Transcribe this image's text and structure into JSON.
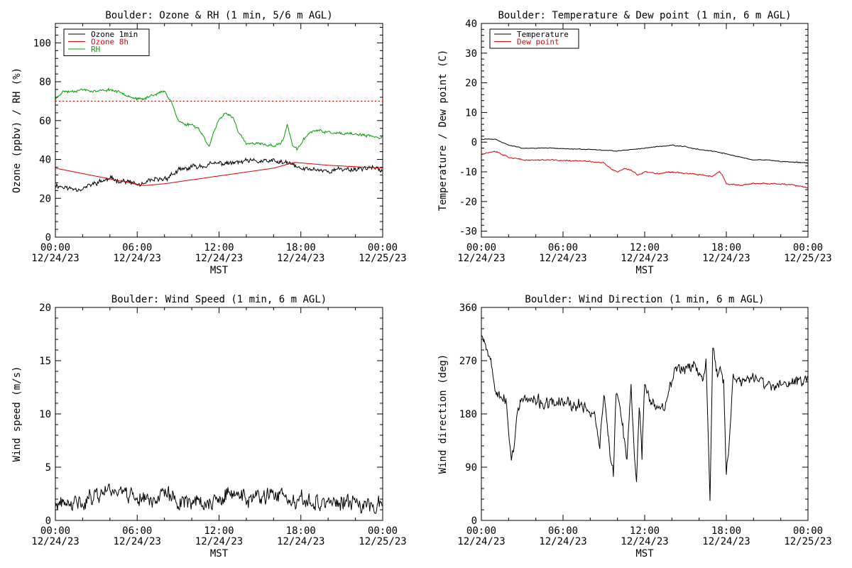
{
  "chart_data": [
    {
      "id": "ozone_rh",
      "type": "line",
      "title": "Boulder: Ozone & RH (1 min, 5/6 m AGL)",
      "xlabel": "MST",
      "ylabel": "Ozone (ppbv) / RH (%)",
      "xlim": [
        0,
        24
      ],
      "ylim": [
        0,
        110
      ],
      "yticks": [
        0,
        20,
        40,
        60,
        80,
        100
      ],
      "xtick_labels": [
        [
          "00:00",
          "12/24/23"
        ],
        [
          "06:00",
          "12/24/23"
        ],
        [
          "12:00",
          "12/24/23"
        ],
        [
          "18:00",
          "12/24/23"
        ],
        [
          "00:00",
          "12/25/23"
        ]
      ],
      "legend_position": "top-left",
      "reference_line": {
        "y": 70,
        "color": "#e00000",
        "style": "dotted"
      },
      "series": [
        {
          "name": "Ozone 1min",
          "color": "#000000",
          "noise": 1.5,
          "seed": 11,
          "x": [
            0,
            1,
            2,
            3,
            4,
            5,
            6,
            6.5,
            7,
            8,
            9,
            10,
            11,
            12,
            13,
            14,
            15,
            16,
            17,
            17.5,
            18,
            19,
            20,
            21,
            22,
            23,
            24
          ],
          "y": [
            27,
            25,
            25,
            28,
            30,
            29,
            27,
            27,
            29,
            30,
            34,
            36,
            37,
            38,
            38,
            39,
            39,
            39,
            38,
            37,
            35,
            35,
            34,
            35,
            35,
            36,
            34
          ]
        },
        {
          "name": "Ozone 8h",
          "color": "#e00000",
          "noise": 0,
          "seed": 0,
          "x": [
            0,
            6.5,
            8,
            12,
            16,
            17.5,
            20,
            24
          ],
          "y": [
            35.5,
            26.5,
            27.5,
            31.5,
            35.5,
            38.5,
            37,
            35.5
          ]
        },
        {
          "name": "RH",
          "color": "#00a000",
          "noise": 0.8,
          "seed": 23,
          "x": [
            0,
            0.5,
            1,
            2,
            3,
            4,
            5,
            6,
            6.5,
            7,
            7.5,
            8,
            8.5,
            8.8,
            9,
            9.5,
            10,
            10.5,
            11,
            11.3,
            11.6,
            12,
            12.5,
            13,
            13.5,
            14,
            15,
            16,
            16.5,
            16.8,
            17,
            17.2,
            17.4,
            17.7,
            18,
            18.5,
            19,
            20,
            21,
            22,
            23,
            23.8,
            24
          ],
          "y": [
            71,
            75,
            75,
            76,
            75,
            76,
            74,
            71,
            71,
            73,
            74,
            75,
            70,
            64,
            60,
            58,
            58,
            56,
            50,
            47,
            54,
            60,
            64,
            62,
            53,
            48,
            48,
            47,
            48,
            52,
            58,
            53,
            47,
            45,
            48,
            53,
            55,
            54,
            53,
            53,
            52,
            51,
            53
          ]
        }
      ]
    },
    {
      "id": "temp_dew",
      "type": "line",
      "title": "Boulder: Temperature & Dew point (1 min, 6 m AGL)",
      "xlabel": "MST",
      "ylabel": "Temperature / Dew point (C)",
      "xlim": [
        0,
        24
      ],
      "ylim": [
        -32,
        40
      ],
      "yticks": [
        -30,
        -20,
        -10,
        0,
        10,
        20,
        30,
        40
      ],
      "xtick_labels": [
        [
          "00:00",
          "12/24/23"
        ],
        [
          "06:00",
          "12/24/23"
        ],
        [
          "12:00",
          "12/24/23"
        ],
        [
          "18:00",
          "12/24/23"
        ],
        [
          "00:00",
          "12/25/23"
        ]
      ],
      "legend_position": "top-left",
      "series": [
        {
          "name": "Temperature",
          "color": "#000000",
          "noise": 0.15,
          "seed": 31,
          "x": [
            0,
            1,
            1.5,
            2,
            3,
            5,
            8,
            10,
            12,
            13,
            14,
            15,
            16,
            17,
            18,
            19,
            20,
            21,
            22,
            24
          ],
          "y": [
            1,
            1,
            0,
            -1,
            -2,
            -2,
            -2.5,
            -3,
            -2,
            -1.5,
            -1,
            -1.5,
            -2.5,
            -3,
            -4,
            -5,
            -6,
            -6,
            -6.5,
            -7
          ]
        },
        {
          "name": "Dew point",
          "color": "#e00000",
          "noise": 0.25,
          "seed": 37,
          "x": [
            0,
            1,
            1.5,
            2,
            3,
            5,
            8,
            9,
            9.5,
            10,
            10.5,
            11,
            11.5,
            12,
            13,
            14,
            15,
            16,
            17,
            17.5,
            17.8,
            18,
            19,
            20,
            21,
            22,
            23,
            24
          ],
          "y": [
            -4,
            -3,
            -4,
            -5,
            -6,
            -6,
            -6.5,
            -7,
            -9,
            -10,
            -9,
            -9.5,
            -11,
            -10,
            -10.5,
            -10,
            -10.5,
            -11,
            -11.5,
            -10,
            -12,
            -14,
            -14.5,
            -14,
            -14,
            -14,
            -14.5,
            -15.5
          ]
        }
      ]
    },
    {
      "id": "wind_speed",
      "type": "line",
      "title": "Boulder: Wind Speed (1 min, 6 m AGL)",
      "xlabel": "MST",
      "ylabel": "Wind speed (m/s)",
      "xlim": [
        0,
        24
      ],
      "ylim": [
        0,
        20
      ],
      "yticks": [
        0,
        5,
        10,
        15,
        20
      ],
      "xtick_labels": [
        [
          "00:00",
          "12/24/23"
        ],
        [
          "06:00",
          "12/24/23"
        ],
        [
          "12:00",
          "12/24/23"
        ],
        [
          "18:00",
          "12/24/23"
        ],
        [
          "00:00",
          "12/25/23"
        ]
      ],
      "series": [
        {
          "name": "",
          "color": "#000000",
          "noise": 0.9,
          "seed": 41,
          "clip_min": 0,
          "x": [
            0,
            1,
            2,
            3,
            4,
            5,
            6,
            7,
            8,
            9,
            10,
            11,
            12,
            13,
            14,
            15,
            16,
            16.5,
            17,
            18,
            19,
            20,
            21,
            22,
            23,
            24
          ],
          "y": [
            1.5,
            1.3,
            1.8,
            2.5,
            3.0,
            2.8,
            2.2,
            2.0,
            2.5,
            1.8,
            2.0,
            1.5,
            1.8,
            2.5,
            2.2,
            2.0,
            2.2,
            2.8,
            1.5,
            1.6,
            1.8,
            1.7,
            1.6,
            1.5,
            1.6,
            1.8
          ]
        }
      ]
    },
    {
      "id": "wind_dir",
      "type": "line",
      "title": "Boulder: Wind Direction (1 min, 6 m AGL)",
      "xlabel": "MST",
      "ylabel": "Wind direction (deg)",
      "xlim": [
        0,
        24
      ],
      "ylim": [
        0,
        360
      ],
      "yticks": [
        0,
        90,
        180,
        270,
        360
      ],
      "xtick_labels": [
        [
          "00:00",
          "12/24/23"
        ],
        [
          "06:00",
          "12/24/23"
        ],
        [
          "12:00",
          "12/24/23"
        ],
        [
          "18:00",
          "12/24/23"
        ],
        [
          "00:00",
          "12/25/23"
        ]
      ],
      "series": [
        {
          "name": "",
          "color": "#000000",
          "noise": 12,
          "seed": 53,
          "clip_min": 0,
          "clip_max": 360,
          "x": [
            0,
            0.3,
            0.7,
            1,
            1.5,
            1.8,
            2.0,
            2.2,
            2.4,
            2.6,
            3,
            4,
            5,
            6,
            7,
            7.5,
            8,
            8.3,
            8.7,
            9,
            9.3,
            9.5,
            9.7,
            9.9,
            10.1,
            10.4,
            10.7,
            11,
            11.2,
            11.4,
            11.6,
            11.8,
            12,
            12.5,
            13,
            13.5,
            14,
            14.5,
            15,
            15.5,
            16,
            16.3,
            16.5,
            16.7,
            16.8,
            17,
            17.2,
            17.4,
            17.6,
            17.8,
            18,
            18.2,
            18.5,
            19,
            19.5,
            20,
            21,
            22,
            23,
            24
          ],
          "y": [
            320,
            300,
            270,
            230,
            210,
            200,
            150,
            105,
            130,
            180,
            205,
            200,
            195,
            200,
            190,
            195,
            185,
            180,
            130,
            210,
            150,
            110,
            70,
            220,
            200,
            150,
            100,
            230,
            120,
            70,
            200,
            110,
            230,
            200,
            190,
            200,
            240,
            260,
            260,
            265,
            250,
            230,
            280,
            120,
            30,
            300,
            270,
            240,
            260,
            230,
            80,
            120,
            250,
            230,
            240,
            240,
            230,
            225,
            235,
            240
          ]
        }
      ]
    }
  ]
}
